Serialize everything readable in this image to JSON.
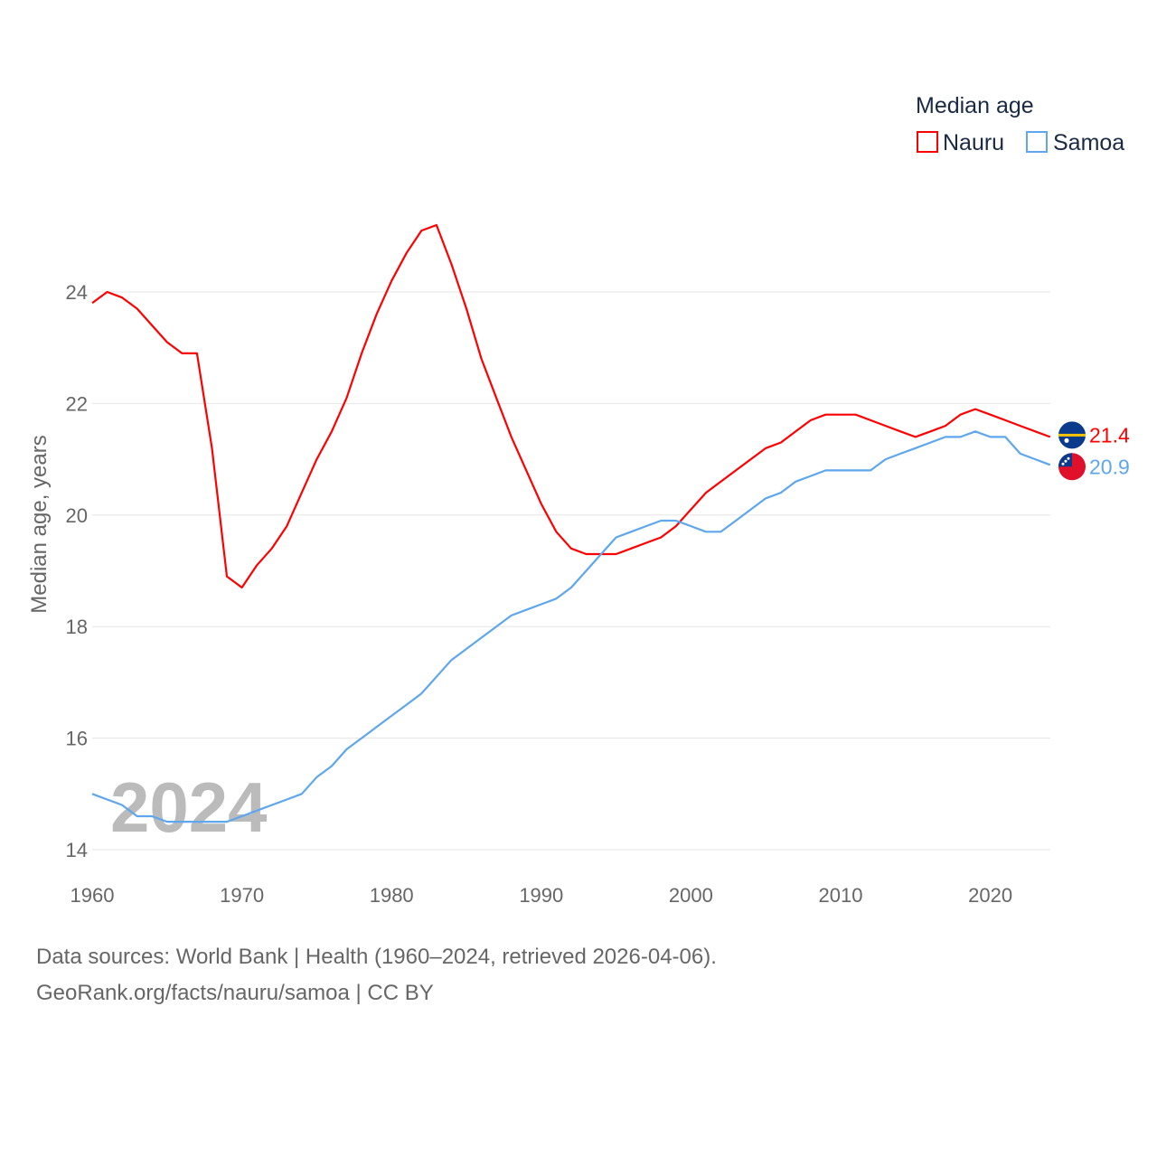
{
  "chart_data": {
    "type": "line",
    "title": "",
    "legend_title": "Median age",
    "legend_position": "top-right",
    "xlabel": "",
    "ylabel": "Median age, years",
    "xlim": [
      1960,
      2024
    ],
    "ylim": [
      14,
      25.4
    ],
    "x_ticks": [
      1960,
      1970,
      1980,
      1990,
      2000,
      2010,
      2020
    ],
    "y_ticks": [
      14,
      16,
      18,
      20,
      22,
      24
    ],
    "grid": true,
    "watermark_year": "2024",
    "x": [
      1960,
      1961,
      1962,
      1963,
      1964,
      1965,
      1966,
      1967,
      1968,
      1969,
      1970,
      1971,
      1972,
      1973,
      1974,
      1975,
      1976,
      1977,
      1978,
      1979,
      1980,
      1981,
      1982,
      1983,
      1984,
      1985,
      1986,
      1987,
      1988,
      1989,
      1990,
      1991,
      1992,
      1993,
      1994,
      1995,
      1996,
      1997,
      1998,
      1999,
      2000,
      2001,
      2002,
      2003,
      2004,
      2005,
      2006,
      2007,
      2008,
      2009,
      2010,
      2011,
      2012,
      2013,
      2014,
      2015,
      2016,
      2017,
      2018,
      2019,
      2020,
      2021,
      2022,
      2023,
      2024
    ],
    "series": [
      {
        "name": "Nauru",
        "color": "#ff0000",
        "end_label": "21.4",
        "values": [
          23.8,
          24.0,
          23.9,
          23.7,
          23.4,
          23.1,
          22.9,
          22.9,
          21.2,
          18.9,
          18.7,
          19.1,
          19.4,
          19.8,
          20.4,
          21.0,
          21.5,
          22.1,
          22.9,
          23.6,
          24.2,
          24.7,
          25.1,
          25.2,
          24.5,
          23.7,
          22.8,
          22.1,
          21.4,
          20.8,
          20.2,
          19.7,
          19.4,
          19.3,
          19.3,
          19.3,
          19.4,
          19.5,
          19.6,
          19.8,
          20.1,
          20.4,
          20.6,
          20.8,
          21.0,
          21.2,
          21.3,
          21.5,
          21.7,
          21.8,
          21.8,
          21.8,
          21.7,
          21.6,
          21.5,
          21.4,
          21.5,
          21.6,
          21.8,
          21.9,
          21.8,
          21.7,
          21.6,
          21.5,
          21.4
        ]
      },
      {
        "name": "Samoa",
        "color": "#5ea6ee",
        "end_label": "20.9",
        "values": [
          15.0,
          14.9,
          14.8,
          14.6,
          14.6,
          14.5,
          14.5,
          14.5,
          14.5,
          14.5,
          14.6,
          14.7,
          14.8,
          14.9,
          15.0,
          15.3,
          15.5,
          15.8,
          16.0,
          16.2,
          16.4,
          16.6,
          16.8,
          17.1,
          17.4,
          17.6,
          17.8,
          18.0,
          18.2,
          18.3,
          18.4,
          18.5,
          18.7,
          19.0,
          19.3,
          19.6,
          19.7,
          19.8,
          19.9,
          19.9,
          19.8,
          19.7,
          19.7,
          19.9,
          20.1,
          20.3,
          20.4,
          20.6,
          20.7,
          20.8,
          20.8,
          20.8,
          20.8,
          21.0,
          21.1,
          21.2,
          21.3,
          21.4,
          21.4,
          21.5,
          21.4,
          21.4,
          21.1,
          21.0,
          20.9
        ]
      }
    ]
  },
  "footer": {
    "line1": "Data sources: World Bank | Health (1960–2024, retrieved 2026-04-06).",
    "line2": "GeoRank.org/facts/nauru/samoa | CC BY"
  }
}
